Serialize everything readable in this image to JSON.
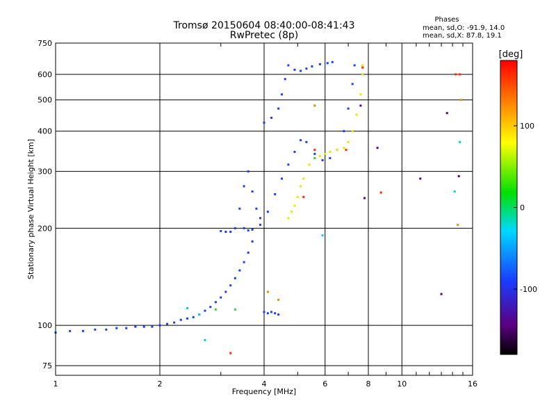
{
  "chart_data": {
    "type": "scatter",
    "title": "Tromsø 20150604 08:40:00-08:41:43",
    "subtitle": "RwPretec (8p)",
    "phase_header": "Phases",
    "phase_stats": [
      "mean, sd,O: -91.9, 14.0",
      "mean, sd,X: 87.8, 19.1"
    ],
    "xlabel": "Frequency [MHz]",
    "ylabel": "Stationary phase Virtual Height [km]",
    "x_scale": "log",
    "y_scale": "log",
    "xlim": [
      1,
      16
    ],
    "ylim": [
      70,
      750
    ],
    "x_ticks": [
      1,
      2,
      4,
      6,
      8,
      10,
      16
    ],
    "x_tick_labels": [
      "1",
      "2",
      "4",
      "6",
      "8",
      "10",
      "16"
    ],
    "y_ticks": [
      75,
      100,
      200,
      300,
      400,
      500,
      600,
      750
    ],
    "y_tick_labels": [
      "75",
      "100",
      "200",
      "300",
      "400",
      "500",
      "600",
      "750"
    ],
    "grid": true,
    "colorbar": {
      "label": "[deg]",
      "range": [
        -180,
        180
      ],
      "ticks": [
        100,
        0,
        -100
      ],
      "tick_labels": [
        "100",
        "0",
        "-100"
      ]
    },
    "series": [
      {
        "color": "#1a3cff",
        "points": [
          [
            1.0,
            95
          ],
          [
            1.1,
            96
          ],
          [
            1.2,
            96
          ],
          [
            1.3,
            97
          ],
          [
            1.4,
            97
          ],
          [
            1.5,
            98
          ],
          [
            1.6,
            98
          ],
          [
            1.7,
            99
          ],
          [
            1.8,
            99
          ],
          [
            1.9,
            99
          ],
          [
            2.0,
            100
          ],
          [
            2.1,
            101
          ],
          [
            2.2,
            102
          ],
          [
            2.3,
            104
          ],
          [
            2.4,
            105
          ],
          [
            2.5,
            106
          ],
          [
            2.6,
            108
          ],
          [
            2.7,
            111
          ],
          [
            2.8,
            114
          ],
          [
            2.9,
            118
          ],
          [
            3.0,
            122
          ],
          [
            3.1,
            127
          ],
          [
            3.2,
            133
          ],
          [
            3.3,
            140
          ],
          [
            3.4,
            148
          ],
          [
            3.5,
            157
          ],
          [
            3.6,
            168
          ],
          [
            3.7,
            182
          ]
        ]
      },
      {
        "color": "#1a3cff",
        "points": [
          [
            3.0,
            196
          ],
          [
            3.1,
            195
          ],
          [
            3.2,
            195
          ],
          [
            3.3,
            200
          ],
          [
            3.4,
            230
          ],
          [
            3.5,
            270
          ],
          [
            3.6,
            300
          ],
          [
            3.7,
            260
          ],
          [
            3.8,
            230
          ],
          [
            3.9,
            215
          ],
          [
            3.5,
            200
          ],
          [
            3.6,
            197
          ],
          [
            3.7,
            198
          ],
          [
            3.9,
            205
          ],
          [
            4.1,
            225
          ],
          [
            4.3,
            255
          ],
          [
            4.5,
            285
          ],
          [
            4.7,
            315
          ],
          [
            4.9,
            345
          ],
          [
            5.1,
            375
          ],
          [
            5.3,
            370
          ],
          [
            5.6,
            340
          ],
          [
            5.9,
            325
          ],
          [
            6.2,
            330
          ],
          [
            6.5,
            350
          ],
          [
            6.8,
            400
          ],
          [
            7.0,
            470
          ],
          [
            7.2,
            560
          ],
          [
            7.3,
            640
          ]
        ]
      },
      {
        "color": "#1a3cff",
        "points": [
          [
            4.0,
            425
          ],
          [
            4.2,
            440
          ],
          [
            4.4,
            470
          ],
          [
            4.5,
            520
          ],
          [
            4.6,
            580
          ],
          [
            4.7,
            640
          ]
        ]
      },
      {
        "color": "#1a3cff",
        "points": [
          [
            4.9,
            620
          ],
          [
            5.1,
            615
          ],
          [
            5.3,
            625
          ],
          [
            5.5,
            635
          ],
          [
            5.8,
            645
          ],
          [
            6.1,
            650
          ],
          [
            6.3,
            655
          ]
        ]
      },
      {
        "color": "#1a3cff",
        "points": [
          [
            4.0,
            110
          ],
          [
            4.1,
            109
          ],
          [
            4.2,
            110
          ],
          [
            4.3,
            109
          ],
          [
            4.4,
            108
          ]
        ]
      },
      {
        "color": "#e8e800",
        "points": [
          [
            4.7,
            215
          ],
          [
            4.8,
            225
          ],
          [
            4.9,
            235
          ],
          [
            5.0,
            250
          ],
          [
            5.1,
            270
          ],
          [
            5.2,
            285
          ],
          [
            5.4,
            315
          ],
          [
            5.6,
            330
          ],
          [
            5.8,
            335
          ],
          [
            6.0,
            340
          ],
          [
            6.2,
            345
          ],
          [
            6.5,
            350
          ],
          [
            6.8,
            355
          ],
          [
            7.0,
            370
          ],
          [
            7.2,
            400
          ],
          [
            7.4,
            450
          ],
          [
            7.6,
            520
          ],
          [
            7.7,
            600
          ],
          [
            7.7,
            640
          ]
        ]
      },
      {
        "color": "#ff2a00",
        "points": [
          [
            3.2,
            82
          ],
          [
            5.2,
            250
          ],
          [
            5.6,
            350
          ],
          [
            6.9,
            350
          ],
          [
            7.7,
            630
          ],
          [
            8.7,
            258
          ],
          [
            14.3,
            600
          ],
          [
            14.7,
            600
          ]
        ]
      },
      {
        "color": "#3ad43a",
        "points": [
          [
            2.9,
            112
          ],
          [
            3.3,
            112
          ],
          [
            5.6,
            330
          ]
        ]
      },
      {
        "color": "#00d0d0",
        "points": [
          [
            2.4,
            113
          ],
          [
            2.6,
            108
          ],
          [
            2.7,
            90
          ],
          [
            5.9,
            190
          ],
          [
            5.6,
            480
          ],
          [
            14.7,
            370
          ],
          [
            14.2,
            260
          ]
        ]
      },
      {
        "color": "#5a0080",
        "points": [
          [
            7.6,
            480
          ],
          [
            8.5,
            355
          ],
          [
            11.3,
            285
          ],
          [
            13.5,
            455
          ],
          [
            14.6,
            290
          ],
          [
            7.8,
            248
          ],
          [
            13.0,
            125
          ]
        ]
      },
      {
        "color": "#e09000",
        "points": [
          [
            4.1,
            127
          ],
          [
            4.4,
            120
          ],
          [
            5.6,
            480
          ],
          [
            14.8,
            500
          ],
          [
            14.5,
            205
          ]
        ]
      }
    ]
  }
}
